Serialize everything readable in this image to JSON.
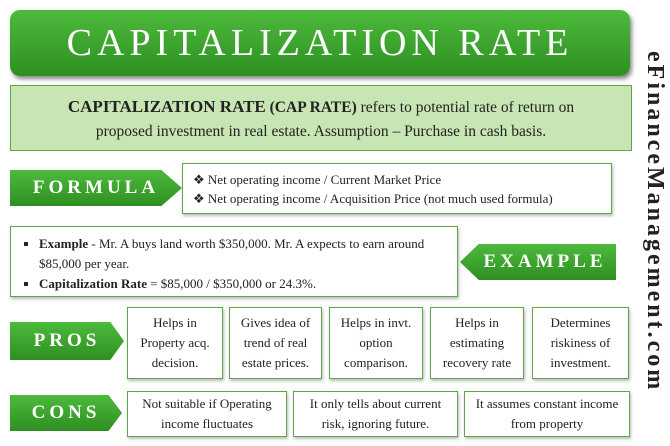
{
  "header": {
    "title": "CAPITALIZATION RATE",
    "brand": "eFinanceManagement.com"
  },
  "definition": {
    "term": "CAPITALIZATION RATE",
    "abbr": "(CAP RATE)",
    "text": "refers to potential rate of return on proposed investment in real estate. Assumption – Purchase in cash basis."
  },
  "formula": {
    "label": "FORMULA",
    "items": [
      "Net operating income / Current Market Price",
      "Net operating income / Acquisition Price  (not much used formula)"
    ]
  },
  "example": {
    "label": "EXAMPLE",
    "items": [
      {
        "bold": "Example",
        "text": "- Mr. A buys land worth $350,000. Mr. A expects to earn around $85,000 per year."
      },
      {
        "bold": "Capitalization Rate",
        "text": "= $85,000 / $350,000 or 24.3%."
      }
    ]
  },
  "pros": {
    "label": "PROS",
    "items": [
      "Helps in Property acq. decision.",
      "Gives idea of trend of real estate prices.",
      "Helps in invt. option comparison.",
      "Helps in estimating recovery rate",
      "Determines riskiness of investment."
    ]
  },
  "cons": {
    "label": "CONS",
    "items": [
      "Not suitable if Operating income fluctuates",
      "It only tells about current risk, ignoring future.",
      "It assumes constant income from property"
    ]
  }
}
